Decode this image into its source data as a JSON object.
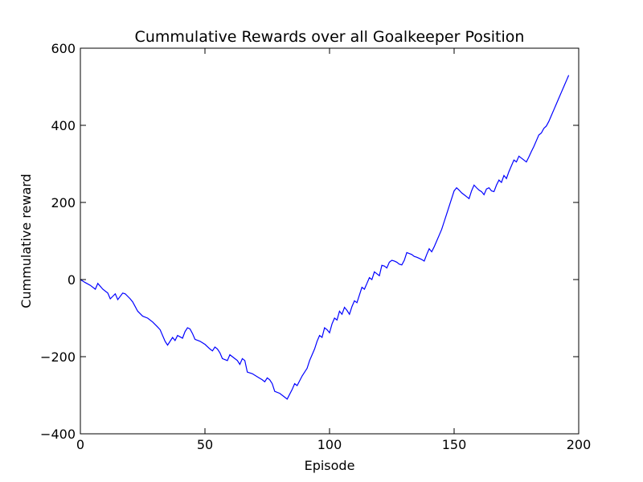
{
  "chart_data": {
    "type": "line",
    "title": "Cummulative Rewards over all Goalkeeper Position",
    "xlabel": "Episode",
    "ylabel": "Cummulative reward",
    "xlim": [
      0,
      200
    ],
    "ylim": [
      -400,
      600
    ],
    "xticks": [
      0,
      50,
      100,
      150,
      200
    ],
    "yticks": [
      -400,
      -200,
      0,
      200,
      400,
      600
    ],
    "grid": false,
    "line_color": "#0000ff",
    "series": [
      {
        "x": [
          0,
          2,
          4,
          6,
          7,
          9,
          11,
          12,
          14,
          15,
          17,
          18,
          20,
          21,
          23,
          25,
          27,
          29,
          31,
          32,
          34,
          35,
          37,
          38,
          39,
          41,
          42,
          43,
          44,
          45,
          46,
          48,
          50,
          52,
          53,
          54,
          55,
          56,
          57,
          59,
          60,
          62,
          63,
          64,
          65,
          66,
          67,
          69,
          71,
          73,
          74,
          75,
          76,
          77,
          78,
          80,
          82,
          83,
          85,
          86,
          87,
          89,
          91,
          92,
          93,
          94,
          95,
          96,
          97,
          98,
          99,
          100,
          101,
          102,
          103,
          104,
          105,
          106,
          107,
          108,
          109,
          110,
          111,
          112,
          113,
          114,
          115,
          116,
          117,
          118,
          119,
          120,
          121,
          122,
          123,
          124,
          125,
          126,
          127,
          128,
          129,
          130,
          131,
          133,
          134,
          135,
          136,
          137,
          138,
          139,
          140,
          141,
          142,
          143,
          144,
          145,
          146,
          147,
          148,
          149,
          150,
          151,
          152,
          153,
          154,
          155,
          156,
          157,
          158,
          159,
          160,
          161,
          162,
          163,
          164,
          165,
          166,
          167,
          168,
          169,
          170,
          171,
          172,
          173,
          174,
          175,
          176,
          177,
          178,
          179,
          180,
          181,
          182,
          183,
          184,
          185,
          186,
          187,
          188,
          189,
          190,
          191,
          192,
          193,
          194,
          195,
          196
        ],
        "y": [
          0,
          -8,
          -15,
          -25,
          -10,
          -25,
          -35,
          -50,
          -37,
          -52,
          -35,
          -37,
          -50,
          -58,
          -82,
          -95,
          -100,
          -110,
          -123,
          -130,
          -160,
          -170,
          -150,
          -158,
          -145,
          -152,
          -135,
          -125,
          -128,
          -140,
          -155,
          -160,
          -168,
          -180,
          -185,
          -175,
          -180,
          -190,
          -205,
          -210,
          -195,
          -205,
          -210,
          -220,
          -205,
          -210,
          -240,
          -244,
          -252,
          -260,
          -265,
          -255,
          -260,
          -270,
          -290,
          -295,
          -305,
          -310,
          -285,
          -270,
          -275,
          -250,
          -230,
          -210,
          -195,
          -180,
          -160,
          -145,
          -150,
          -125,
          -130,
          -138,
          -115,
          -100,
          -105,
          -82,
          -90,
          -72,
          -80,
          -90,
          -70,
          -55,
          -60,
          -40,
          -20,
          -25,
          -10,
          5,
          0,
          20,
          15,
          10,
          37,
          35,
          30,
          45,
          50,
          48,
          45,
          40,
          38,
          50,
          70,
          65,
          60,
          58,
          55,
          52,
          48,
          65,
          80,
          72,
          85,
          100,
          115,
          130,
          150,
          170,
          190,
          210,
          230,
          238,
          232,
          225,
          220,
          215,
          210,
          230,
          245,
          238,
          232,
          228,
          220,
          235,
          238,
          230,
          228,
          245,
          258,
          252,
          270,
          262,
          280,
          295,
          310,
          305,
          320,
          315,
          310,
          305,
          318,
          332,
          345,
          360,
          375,
          380,
          392,
          398,
          410,
          425,
          440,
          455,
          470,
          485,
          500,
          515,
          530
        ]
      }
    ]
  }
}
